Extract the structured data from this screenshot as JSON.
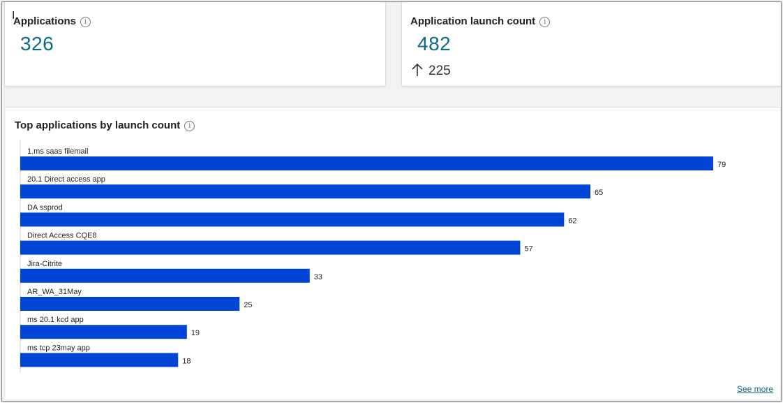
{
  "cards": {
    "applications": {
      "title": "Applications",
      "value": "326"
    },
    "launch_count": {
      "title": "Application launch count",
      "value": "482",
      "delta": "225"
    }
  },
  "chart": {
    "title": "Top applications by launch count",
    "see_more": "See more"
  },
  "chart_data": {
    "type": "bar",
    "orientation": "horizontal",
    "title": "Top applications by launch count",
    "categories": [
      "1.ms saas filemail",
      "20.1 Direct access app",
      "DA ssprod",
      "Direct Access CQE8",
      "Jira-Citrite",
      "AR_WA_31May",
      "ms 20.1 kcd app",
      "ms tcp 23may app"
    ],
    "values": [
      79,
      65,
      62,
      57,
      33,
      25,
      19,
      18
    ],
    "xlim": [
      0,
      79
    ],
    "bar_color": "#0045d6",
    "grid": false
  },
  "colors": {
    "accent": "#0d6b82",
    "bar": "#0045d6"
  }
}
